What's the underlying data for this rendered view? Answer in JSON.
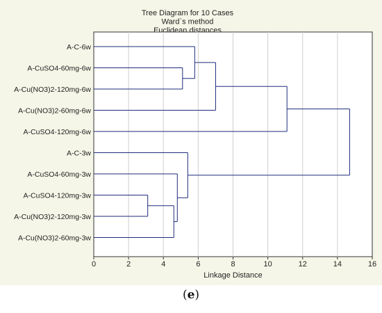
{
  "chart_data": {
    "type": "dendrogram",
    "title": [
      "Tree Diagram for 10 Cases",
      "Ward`s method",
      "Euclidean distances"
    ],
    "xlabel": "Linkage Distance",
    "xlim": [
      0,
      16
    ],
    "xticks": [
      0,
      2,
      4,
      6,
      8,
      10,
      12,
      14,
      16
    ],
    "grid": "vertical",
    "leaves": [
      "A-C-6w",
      "A-CuSO4-60mg-6w",
      "A-Cu(NO3)2-120mg-6w",
      "A-Cu(NO3)2-60mg-6w",
      "A-CuSO4-120mg-6w",
      "A-C-3w",
      "A-CuSO4-60mg-3w",
      "A-CuSO4-120mg-3w",
      "A-Cu(NO3)2-120mg-3w",
      "A-Cu(NO3)2-60mg-3w"
    ],
    "merges": [
      {
        "children": [
          "A-CuSO4-120mg-3w",
          "A-Cu(NO3)2-120mg-3w"
        ],
        "distance": 3.1
      },
      {
        "children": [
          "merge-1",
          "A-Cu(NO3)2-60mg-3w"
        ],
        "distance": 4.6
      },
      {
        "children": [
          "A-CuSO4-60mg-3w",
          "merge-2"
        ],
        "distance": 4.8
      },
      {
        "children": [
          "A-CuSO4-60mg-6w",
          "A-Cu(NO3)2-120mg-6w"
        ],
        "distance": 5.1
      },
      {
        "children": [
          "A-C-3w",
          "merge-3"
        ],
        "distance": 5.4
      },
      {
        "children": [
          "A-C-6w",
          "merge-4"
        ],
        "distance": 5.8
      },
      {
        "children": [
          "merge-6",
          "A-Cu(NO3)2-60mg-6w"
        ],
        "distance": 7.0
      },
      {
        "children": [
          "merge-7",
          "A-CuSO4-120mg-6w"
        ],
        "distance": 11.1
      },
      {
        "children": [
          "merge-8",
          "merge-5"
        ],
        "distance": 14.7
      }
    ],
    "line_color": "#1e2a7a"
  },
  "caption": {
    "open": "(",
    "letter": "e",
    "close": ")"
  }
}
